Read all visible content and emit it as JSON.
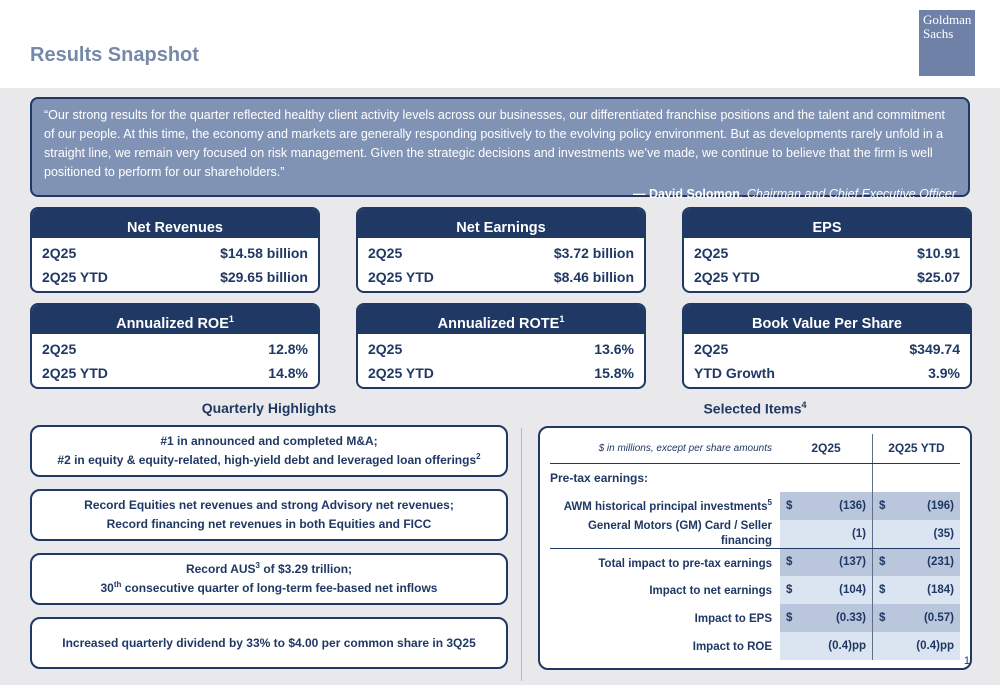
{
  "colors": {
    "navy": "#1f3864",
    "quote_bg": "#8193b5",
    "page_bg": "#e9e9eb",
    "title_gray_blue": "#7789a8",
    "logo_bg": "#7081a8",
    "table_row_shade_dark": "#bac6dc",
    "table_row_shade_light": "#dbe4f1"
  },
  "header": {
    "title": "Results Snapshot",
    "logo_line1": "Goldman",
    "logo_line2": "Sachs"
  },
  "quote": {
    "text": "“Our strong results for the quarter reflected healthy client activity levels across our businesses, our differentiated franchise positions and the talent and commitment of our people. At this time, the economy and markets are generally responding positively to the evolving policy environment. But as developments rarely unfold in a straight line, we remain very focused on risk management. Given the strategic decisions and investments we’ve made, we continue to believe that the firm is well positioned to perform for our shareholders.”",
    "attribution_name": "— David Solomon",
    "attribution_role": ", Chairman and Chief Executive Officer"
  },
  "metric_cards": [
    {
      "title": "Net Revenues",
      "title_sup": "",
      "rows": [
        {
          "label": "2Q25",
          "value": "$14.58 billion"
        },
        {
          "label": "2Q25 YTD",
          "value": "$29.65 billion"
        }
      ]
    },
    {
      "title": "Net Earnings",
      "title_sup": "",
      "rows": [
        {
          "label": "2Q25",
          "value": "$3.72 billion"
        },
        {
          "label": "2Q25 YTD",
          "value": "$8.46 billion"
        }
      ]
    },
    {
      "title": "EPS",
      "title_sup": "",
      "rows": [
        {
          "label": "2Q25",
          "value": "$10.91"
        },
        {
          "label": "2Q25 YTD",
          "value": "$25.07"
        }
      ]
    },
    {
      "title": "Annualized ROE",
      "title_sup": "1",
      "rows": [
        {
          "label": "2Q25",
          "value": "12.8%"
        },
        {
          "label": "2Q25 YTD",
          "value": "14.8%"
        }
      ]
    },
    {
      "title": "Annualized ROTE",
      "title_sup": "1",
      "rows": [
        {
          "label": "2Q25",
          "value": "13.6%"
        },
        {
          "label": "2Q25 YTD",
          "value": "15.8%"
        }
      ]
    },
    {
      "title": "Book Value Per Share",
      "title_sup": "",
      "rows": [
        {
          "label": "2Q25",
          "value": "$349.74"
        },
        {
          "label": "YTD Growth",
          "value": "3.9%"
        }
      ]
    }
  ],
  "quarterly_highlights": {
    "title": "Quarterly Highlights",
    "items": [
      {
        "lines": [
          {
            "pre": "#1 in announced and completed M&A;",
            "sup": "",
            "post": ""
          },
          {
            "pre": "#2 in equity & equity-related, high-yield debt and leveraged loan offerings",
            "sup": "2",
            "post": ""
          }
        ]
      },
      {
        "lines": [
          {
            "pre": "Record Equities net revenues and strong Advisory net revenues;",
            "sup": "",
            "post": ""
          },
          {
            "pre": "Record financing net revenues in both Equities and FICC",
            "sup": "",
            "post": ""
          }
        ]
      },
      {
        "lines": [
          {
            "pre": "Record AUS",
            "sup": "3",
            "post": " of $3.29 trillion;"
          },
          {
            "pre": "30",
            "sup": "th",
            "post": " consecutive quarter of long-term fee-based net inflows"
          }
        ]
      },
      {
        "lines": [
          {
            "pre": "Increased quarterly dividend by 33% to $4.00 per common share in 3Q25",
            "sup": "",
            "post": ""
          }
        ]
      }
    ]
  },
  "selected_items": {
    "title": "Selected Items",
    "title_sup": "4",
    "note": "$ in millions, except per share amounts",
    "col1": "2Q25",
    "col2": "2Q25 YTD",
    "section_label": "Pre-tax earnings:",
    "rows": [
      {
        "label": "AWM historical principal investments",
        "label_sup": "5",
        "d1": "$",
        "v1": "(136)",
        "d2": "$",
        "v2": "(196)"
      },
      {
        "label": "General Motors (GM) Card / Seller financing",
        "label_sup": "",
        "d1": "",
        "v1": "(1)",
        "d2": "",
        "v2": "(35)"
      },
      {
        "label": "Total impact to pre-tax earnings",
        "label_sup": "",
        "d1": "$",
        "v1": "(137)",
        "d2": "$",
        "v2": "(231)"
      },
      {
        "label": "Impact to net earnings",
        "label_sup": "",
        "d1": "$",
        "v1": "(104)",
        "d2": "$",
        "v2": "(184)"
      },
      {
        "label": "Impact to EPS",
        "label_sup": "",
        "d1": "$",
        "v1": "(0.33)",
        "d2": "$",
        "v2": "(0.57)"
      },
      {
        "label": "Impact to ROE",
        "label_sup": "",
        "d1": "",
        "v1": "(0.4)pp",
        "d2": "",
        "v2": "(0.4)pp"
      }
    ]
  },
  "page_number": "1"
}
